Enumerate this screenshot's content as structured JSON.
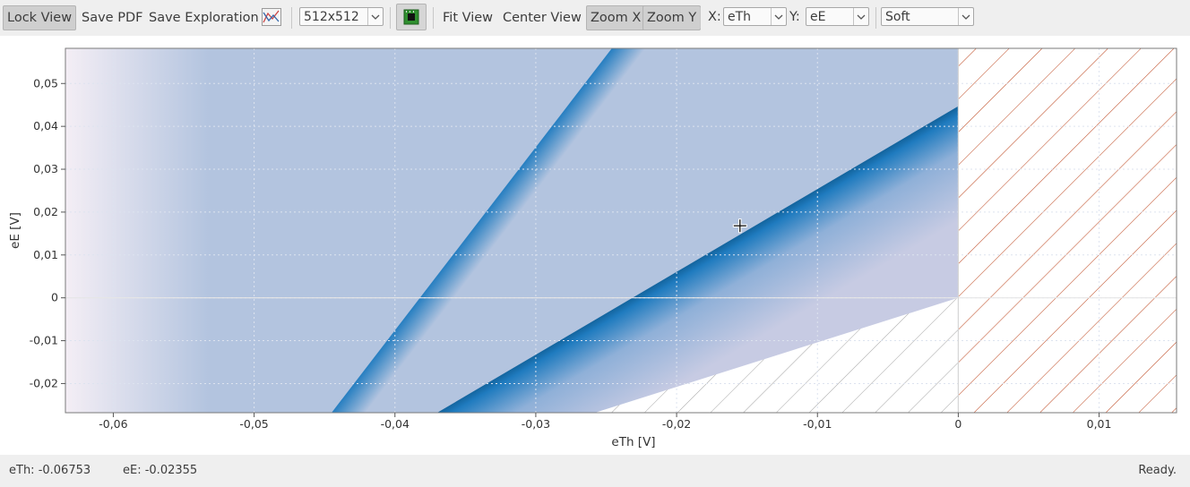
{
  "toolbar": {
    "lock_view": "Lock View",
    "save_pdf": "Save PDF",
    "save_exploration": "Save Exploration",
    "plot_icon": "plot-curves-icon",
    "resolution": "512x512",
    "render_icon": "gpu-chip-icon",
    "fit_view": "Fit View",
    "center_view": "Center View",
    "zoom_x": "Zoom X",
    "zoom_y": "Zoom Y",
    "x_label": "X:",
    "x_value": "eTh",
    "y_label": "Y:",
    "y_value": "eE",
    "style_value": "Soft"
  },
  "chart_data": {
    "type": "heatmap",
    "xlabel": "eTh [V]",
    "ylabel": "eE [V]",
    "xlim": [
      -0.0634,
      0.0155
    ],
    "ylim": [
      -0.0268,
      0.0582
    ],
    "x_ticks": [
      -0.06,
      -0.05,
      -0.04,
      -0.03,
      -0.02,
      -0.01,
      0,
      0.01
    ],
    "x_tick_labels": [
      "-0,06",
      "-0,05",
      "-0,04",
      "-0,03",
      "-0,02",
      "-0,01",
      "0",
      "0,01"
    ],
    "y_ticks": [
      -0.02,
      -0.01,
      0,
      0.01,
      0.02,
      0.03,
      0.04,
      0.05
    ],
    "y_tick_labels": [
      "-0,02",
      "-0,01",
      "0",
      "0,01",
      "0,02",
      "0,03",
      "0,04",
      "0,05"
    ],
    "grid": true,
    "colors": {
      "light": "#b3c4df",
      "mid": "#1f7bbf",
      "dark": "#054a77",
      "hatch_forbidden": "#c0502a",
      "hatch_empty": "#9a9a9a"
    },
    "cursor": {
      "x": -0.0155,
      "y": 0.0168
    }
  },
  "status": {
    "eth": "eTh: -0.06753",
    "ee": "eE: -0.02355",
    "state": "Ready."
  }
}
